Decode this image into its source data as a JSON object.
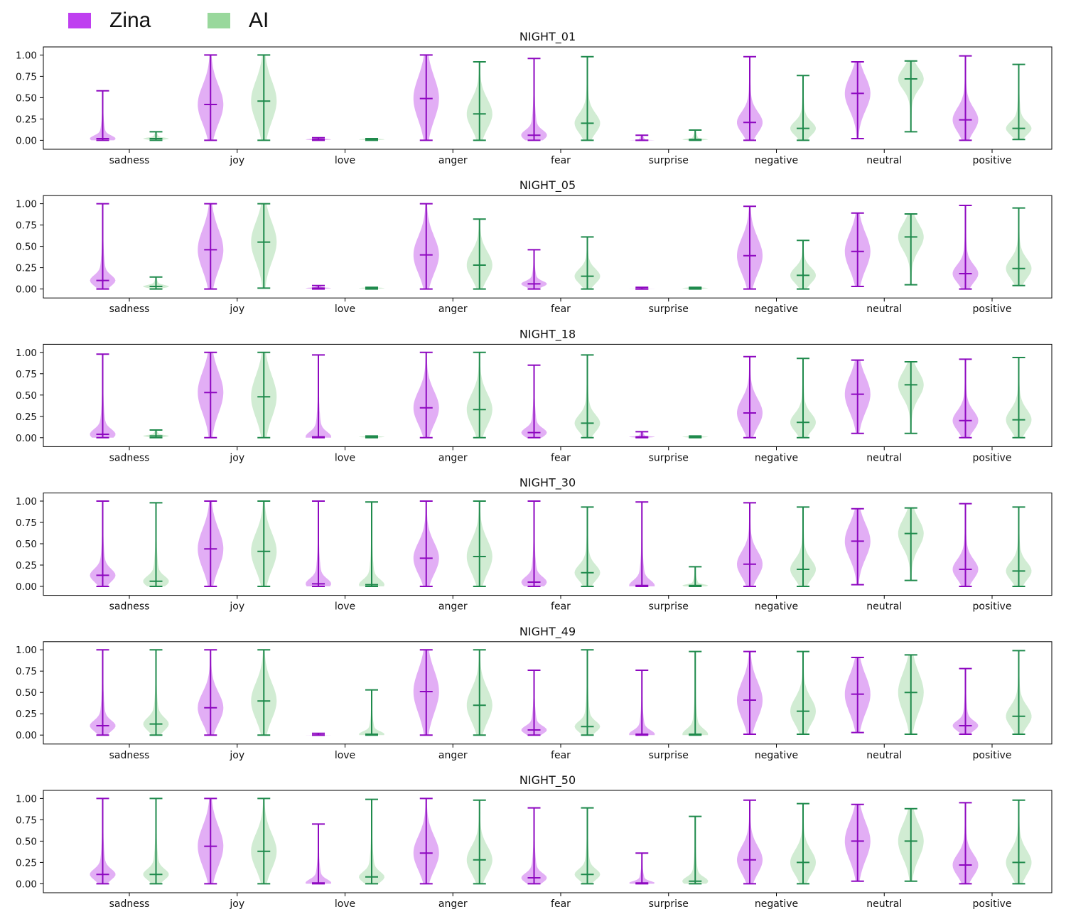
{
  "colors": {
    "zina_fill": "#bf4be8",
    "zina_line": "#8e08c0",
    "ai_fill": "#99d49e",
    "ai_line": "#1f8a4c"
  },
  "chart_data": {
    "type": "violin",
    "legend": [
      {
        "name": "Zina",
        "color": "#bf3ff0"
      },
      {
        "name": "AI",
        "color": "#99d89c"
      }
    ],
    "categories": [
      "sadness",
      "joy",
      "love",
      "anger",
      "fear",
      "surprise",
      "negative",
      "neutral",
      "positive"
    ],
    "yticks": [
      "0.00",
      "0.25",
      "0.50",
      "0.75",
      "1.00"
    ],
    "ylim": [
      -0.05,
      1.05
    ],
    "panels": [
      {
        "title": "NIGHT_01",
        "zina": [
          [
            0,
            0.02,
            0.58
          ],
          [
            0,
            0.42,
            1.0
          ],
          [
            0,
            0.01,
            0.03
          ],
          [
            0,
            0.49,
            1.0
          ],
          [
            0,
            0.06,
            0.96
          ],
          [
            0,
            0.0,
            0.06
          ],
          [
            0,
            0.21,
            0.98
          ],
          [
            0.02,
            0.55,
            0.92
          ],
          [
            0,
            0.24,
            0.99
          ]
        ],
        "ai": [
          [
            0,
            0.02,
            0.1
          ],
          [
            0,
            0.46,
            1.0
          ],
          [
            0,
            0.01,
            0.02
          ],
          [
            0,
            0.31,
            0.92
          ],
          [
            0,
            0.2,
            0.98
          ],
          [
            0,
            0.01,
            0.12
          ],
          [
            0,
            0.14,
            0.76
          ],
          [
            0.1,
            0.72,
            0.93
          ],
          [
            0.01,
            0.14,
            0.89
          ]
        ]
      },
      {
        "title": "NIGHT_05",
        "zina": [
          [
            0,
            0.1,
            1.0
          ],
          [
            0,
            0.46,
            1.0
          ],
          [
            0,
            0.01,
            0.04
          ],
          [
            0,
            0.4,
            1.0
          ],
          [
            0,
            0.06,
            0.46
          ],
          [
            0,
            0.0,
            0.02
          ],
          [
            0,
            0.39,
            0.97
          ],
          [
            0.03,
            0.44,
            0.89
          ],
          [
            0,
            0.18,
            0.98
          ]
        ],
        "ai": [
          [
            0,
            0.03,
            0.14
          ],
          [
            0.01,
            0.55,
            1.0
          ],
          [
            0,
            0.01,
            0.02
          ],
          [
            0,
            0.28,
            0.82
          ],
          [
            0,
            0.15,
            0.61
          ],
          [
            0,
            0.01,
            0.02
          ],
          [
            0,
            0.16,
            0.57
          ],
          [
            0.05,
            0.61,
            0.88
          ],
          [
            0.04,
            0.24,
            0.95
          ]
        ]
      },
      {
        "title": "NIGHT_18",
        "zina": [
          [
            0,
            0.04,
            0.98
          ],
          [
            0,
            0.53,
            1.0
          ],
          [
            0,
            0.01,
            0.97
          ],
          [
            0,
            0.35,
            1.0
          ],
          [
            0,
            0.06,
            0.85
          ],
          [
            0,
            0.01,
            0.07
          ],
          [
            0,
            0.29,
            0.95
          ],
          [
            0.05,
            0.51,
            0.91
          ],
          [
            0,
            0.2,
            0.92
          ]
        ],
        "ai": [
          [
            0,
            0.02,
            0.09
          ],
          [
            0,
            0.48,
            1.0
          ],
          [
            0,
            0.01,
            0.02
          ],
          [
            0,
            0.33,
            1.0
          ],
          [
            0,
            0.17,
            0.97
          ],
          [
            0,
            0.01,
            0.02
          ],
          [
            0,
            0.18,
            0.93
          ],
          [
            0.05,
            0.62,
            0.89
          ],
          [
            0,
            0.21,
            0.94
          ]
        ]
      },
      {
        "title": "NIGHT_30",
        "zina": [
          [
            0,
            0.13,
            1.0
          ],
          [
            0,
            0.44,
            1.0
          ],
          [
            0,
            0.03,
            1.0
          ],
          [
            0,
            0.33,
            1.0
          ],
          [
            0,
            0.05,
            1.0
          ],
          [
            0,
            0.01,
            0.99
          ],
          [
            0,
            0.26,
            0.98
          ],
          [
            0.02,
            0.53,
            0.91
          ],
          [
            0,
            0.2,
            0.97
          ]
        ],
        "ai": [
          [
            0,
            0.06,
            0.98
          ],
          [
            0,
            0.41,
            1.0
          ],
          [
            0,
            0.02,
            0.99
          ],
          [
            0,
            0.35,
            1.0
          ],
          [
            0,
            0.16,
            0.93
          ],
          [
            0,
            0.01,
            0.23
          ],
          [
            0,
            0.2,
            0.93
          ],
          [
            0.07,
            0.62,
            0.92
          ],
          [
            0,
            0.18,
            0.93
          ]
        ]
      },
      {
        "title": "NIGHT_49",
        "zina": [
          [
            0,
            0.11,
            1.0
          ],
          [
            0,
            0.32,
            1.0
          ],
          [
            0,
            0.0,
            0.02
          ],
          [
            0,
            0.51,
            1.0
          ],
          [
            0,
            0.06,
            0.76
          ],
          [
            0,
            0.01,
            0.76
          ],
          [
            0.01,
            0.41,
            0.98
          ],
          [
            0.03,
            0.48,
            0.91
          ],
          [
            0.01,
            0.11,
            0.78
          ]
        ],
        "ai": [
          [
            0,
            0.13,
            1.0
          ],
          [
            0,
            0.4,
            1.0
          ],
          [
            0,
            0.01,
            0.53
          ],
          [
            0,
            0.35,
            1.0
          ],
          [
            0,
            0.1,
            1.0
          ],
          [
            0,
            0.01,
            0.98
          ],
          [
            0.01,
            0.28,
            0.98
          ],
          [
            0.01,
            0.5,
            0.94
          ],
          [
            0.01,
            0.22,
            0.99
          ]
        ]
      },
      {
        "title": "NIGHT_50",
        "zina": [
          [
            0,
            0.11,
            1.0
          ],
          [
            0,
            0.44,
            1.0
          ],
          [
            0,
            0.01,
            0.7
          ],
          [
            0,
            0.36,
            1.0
          ],
          [
            0,
            0.07,
            0.89
          ],
          [
            0,
            0.01,
            0.36
          ],
          [
            0,
            0.28,
            0.98
          ],
          [
            0.03,
            0.5,
            0.93
          ],
          [
            0,
            0.22,
            0.95
          ]
        ],
        "ai": [
          [
            0,
            0.11,
            1.0
          ],
          [
            0,
            0.38,
            1.0
          ],
          [
            0,
            0.08,
            0.99
          ],
          [
            0,
            0.28,
            0.98
          ],
          [
            0,
            0.11,
            0.89
          ],
          [
            0,
            0.03,
            0.79
          ],
          [
            0,
            0.25,
            0.94
          ],
          [
            0.03,
            0.5,
            0.88
          ],
          [
            0,
            0.25,
            0.98
          ]
        ]
      }
    ]
  }
}
